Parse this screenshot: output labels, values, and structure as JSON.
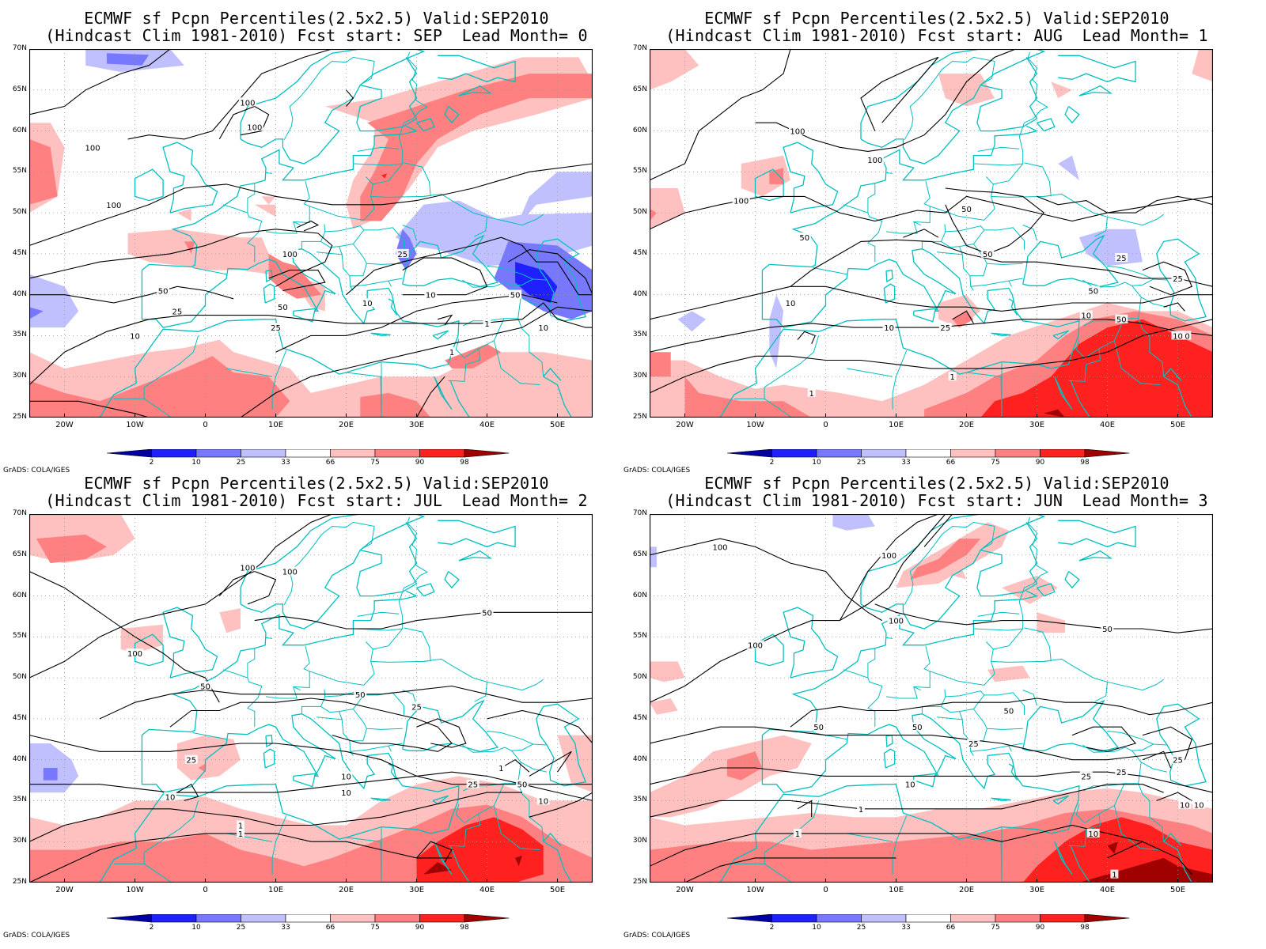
{
  "panels": [
    {
      "title_line1": "ECMWF sf Pcpn Percentiles(2.5x2.5) Valid:SEP2010",
      "title_line2": "(Hindcast Clim 1981-2010) Fcst start: SEP  Lead Month= 0",
      "credit": "GrADS: COLA/IGES"
    },
    {
      "title_line1": "ECMWF sf Pcpn Percentiles(2.5x2.5) Valid:SEP2010",
      "title_line2": "(Hindcast Clim 1981-2010) Fcst start: AUG  Lead Month= 1",
      "credit": "GrADS: COLA/IGES"
    },
    {
      "title_line1": "ECMWF sf Pcpn Percentiles(2.5x2.5) Valid:SEP2010",
      "title_line2": "(Hindcast Clim 1981-2010) Fcst start: JUL  Lead Month= 2",
      "credit": "GrADS: COLA/IGES"
    },
    {
      "title_line1": "ECMWF sf Pcpn Percentiles(2.5x2.5) Valid:SEP2010",
      "title_line2": "(Hindcast Clim 1981-2010) Fcst start: JUN  Lead Month= 3",
      "credit": "GrADS: COLA/IGES"
    }
  ],
  "map": {
    "lon_labels": [
      "20W",
      "10W",
      "0",
      "10E",
      "20E",
      "30E",
      "40E",
      "50E"
    ],
    "lat_labels": [
      "70N",
      "65N",
      "60N",
      "55N",
      "50N",
      "45N",
      "40N",
      "35N",
      "30N",
      "25N"
    ],
    "extent": {
      "lon_min": -25,
      "lon_max": 55,
      "lat_min": 25,
      "lat_max": 70
    }
  },
  "colorbar": {
    "labels": [
      "2",
      "10",
      "25",
      "33",
      "66",
      "75",
      "90",
      "98"
    ],
    "colors": [
      "#0000a0",
      "#2020ff",
      "#7878ff",
      "#c0c0ff",
      "#ffffff",
      "#ffc0c0",
      "#ff8080",
      "#ff2020",
      "#a00000"
    ]
  },
  "colors": {
    "coast": "#00c0c0",
    "contour": "#000000",
    "red_light": "#ffc0c0",
    "red_mid": "#ff8080",
    "red_strong": "#ff2020",
    "red_dark": "#a00000",
    "blue_light": "#c0c0ff",
    "blue_mid": "#7878ff",
    "blue_strong": "#2020ff",
    "blue_dark": "#0000a0"
  },
  "contour_labels": [
    [
      "100",
      "100",
      "100",
      "100",
      "100",
      "50",
      "50",
      "25",
      "25",
      "25",
      "10",
      "10",
      "10",
      "1",
      "1",
      "25",
      "10",
      "50"
    ],
    [
      "100",
      "100",
      "100",
      "50",
      "50",
      "50",
      "50",
      "25",
      "25",
      "10",
      "10",
      "10",
      "10",
      "1",
      "1",
      "50",
      "25",
      "10"
    ],
    [
      "100",
      "100",
      "100",
      "50",
      "50",
      "50",
      "25",
      "25",
      "10",
      "10",
      "10",
      "1",
      "1",
      "25",
      "50",
      "10",
      "1"
    ],
    [
      "100",
      "100",
      "100",
      "100",
      "50",
      "50",
      "50",
      "50",
      "25",
      "25",
      "10",
      "10",
      "10",
      "1",
      "1",
      "25",
      "25",
      "10",
      "1"
    ]
  ]
}
